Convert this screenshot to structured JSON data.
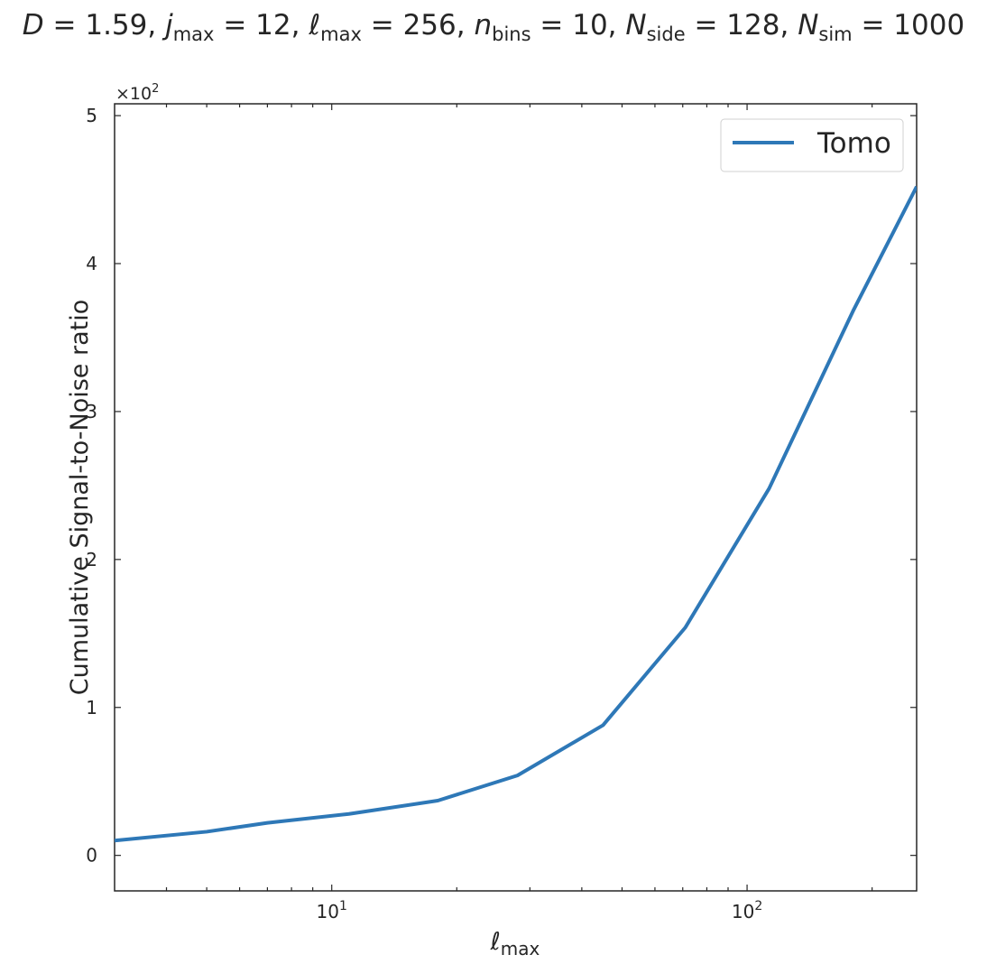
{
  "chart_data": {
    "type": "line",
    "title": [
      {
        "main": "D",
        "sub": null,
        "rest": " = 1.59,  "
      },
      {
        "main": "j",
        "sub": "max",
        "rest": " = 12,  "
      },
      {
        "main": "ℓ",
        "sub": "max",
        "rest": " = 256,  "
      },
      {
        "main": "n",
        "sub": "bins",
        "rest": " = 10,  "
      },
      {
        "main": "N",
        "sub": "side",
        "rest": " = 128, "
      },
      {
        "main": "N",
        "sub": "sim",
        "rest": " = 1000"
      }
    ],
    "x_label": {
      "main": "ℓ",
      "sub": "max"
    },
    "y_label": "Cumulative Signal-to-Noise ratio",
    "y_multiplier": {
      "base": "×10",
      "exponent": "2"
    },
    "x": [
      3,
      5,
      7,
      11,
      18,
      28,
      45,
      71,
      113,
      180,
      256
    ],
    "series": [
      {
        "name": "Tomo",
        "color": "#2e78b7",
        "values": [
          10,
          16,
          22,
          28,
          37,
          54,
          88,
          154,
          248,
          368,
          452
        ]
      }
    ],
    "x_log": true,
    "xlim": [
      3,
      256
    ],
    "xticks": [
      {
        "value": 10,
        "label": "10",
        "exponent": "1"
      },
      {
        "value": 100,
        "label": "10",
        "exponent": "2"
      }
    ],
    "xminorticks": [
      4,
      5,
      6,
      7,
      8,
      9,
      20,
      30,
      40,
      50,
      60,
      70,
      80,
      90,
      200
    ],
    "ylim": [
      -24,
      508
    ],
    "yticks": [
      {
        "value": 0,
        "label": "0"
      },
      {
        "value": 100,
        "label": "1"
      },
      {
        "value": 200,
        "label": "2"
      },
      {
        "value": 300,
        "label": "3"
      },
      {
        "value": 400,
        "label": "4"
      },
      {
        "value": 500,
        "label": "5"
      }
    ],
    "legend": "upper right",
    "grid": false
  }
}
